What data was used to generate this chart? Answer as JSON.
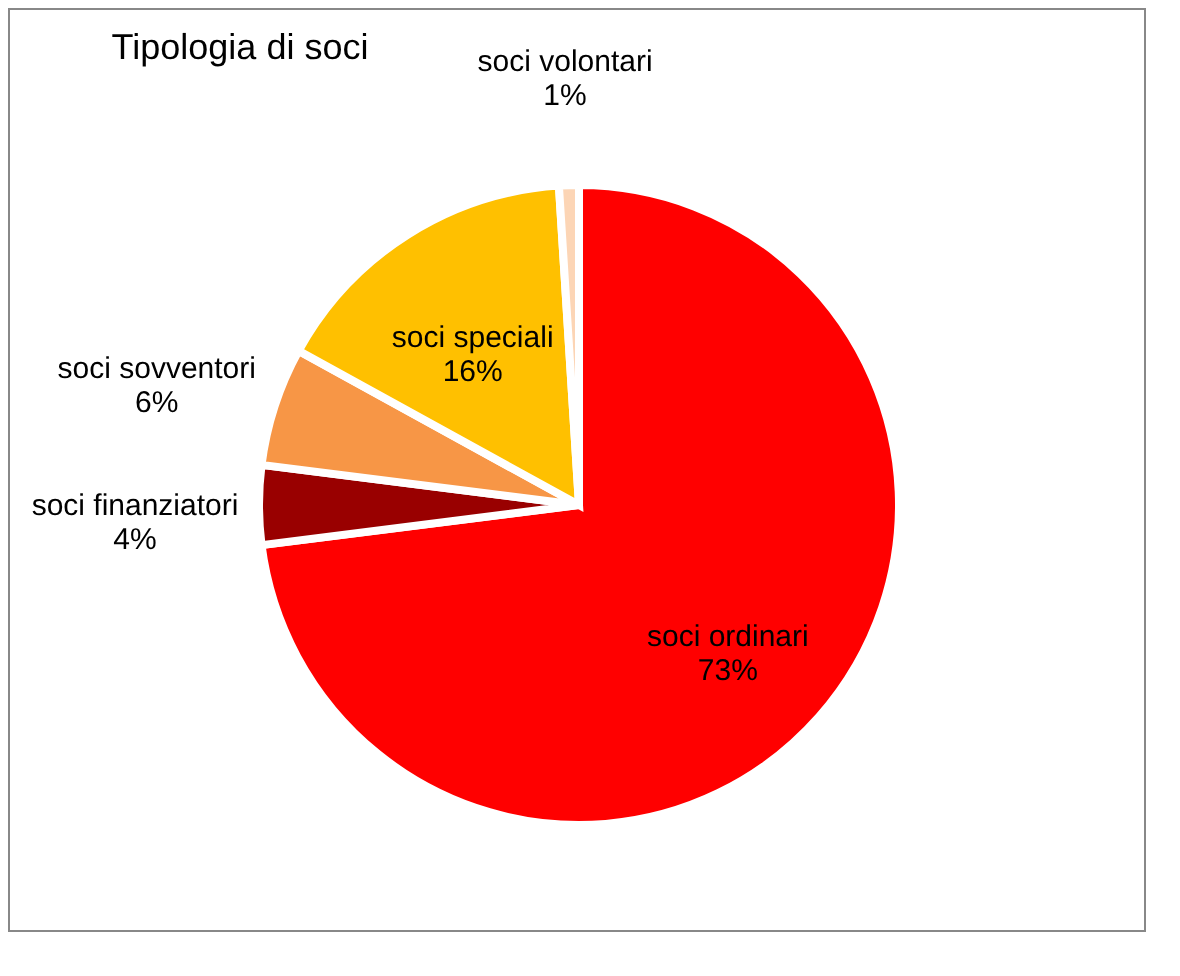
{
  "chart_data": {
    "type": "pie",
    "title": "Tipologia di soci",
    "categories": [
      "soci ordinari",
      "soci finanziatori",
      "soci sovventori",
      "soci speciali",
      "soci volontari"
    ],
    "values": [
      73,
      4,
      6,
      16,
      1
    ],
    "value_labels": [
      "73%",
      "4%",
      "6%",
      "16%",
      "1%"
    ],
    "colors": [
      "#ff0000",
      "#990000",
      "#f79646",
      "#ffc000",
      "#fcd5b5"
    ],
    "legend": false
  }
}
